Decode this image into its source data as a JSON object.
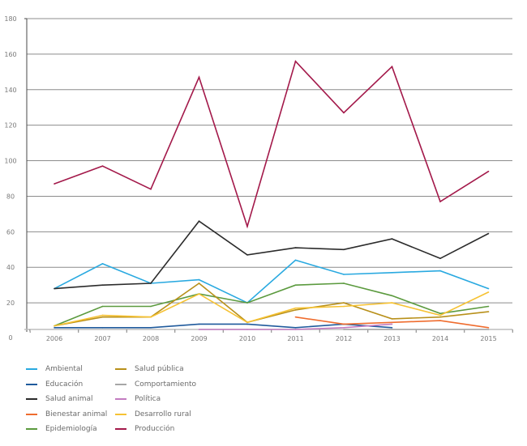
{
  "chart_data": {
    "type": "line",
    "title": "",
    "xlabel": "",
    "ylabel": "",
    "x": [
      "2006",
      "2007",
      "2008",
      "2009",
      "2010",
      "2011",
      "2012",
      "2013",
      "2014",
      "2015"
    ],
    "ylim": [
      0,
      180
    ],
    "yticks": [
      0,
      20,
      40,
      60,
      80,
      100,
      120,
      140,
      160,
      180
    ],
    "grid": true,
    "legend_position": "bottom",
    "series": [
      {
        "name": "Ambiental",
        "color": "#29a9e0",
        "values": [
          28,
          42,
          31,
          33,
          20,
          44,
          36,
          37,
          38,
          28
        ]
      },
      {
        "name": "Educación",
        "color": "#1f5a9c",
        "values": [
          6,
          6,
          6,
          8,
          8,
          6,
          8,
          6,
          null,
          null
        ]
      },
      {
        "name": "Salud animal",
        "color": "#2b2b2b",
        "values": [
          28,
          30,
          31,
          66,
          47,
          51,
          50,
          56,
          45,
          59
        ]
      },
      {
        "name": "Bienestar animal",
        "color": "#ef6c2e",
        "values": [
          null,
          null,
          null,
          null,
          null,
          12,
          8,
          9,
          10,
          6
        ]
      },
      {
        "name": "Epidemiología",
        "color": "#5b9a3e",
        "values": [
          7,
          18,
          18,
          25,
          20,
          30,
          31,
          24,
          14,
          18
        ]
      },
      {
        "name": "Salud pública",
        "color": "#b8901a",
        "values": [
          7,
          12,
          12,
          31,
          9,
          16,
          20,
          11,
          12,
          15
        ]
      },
      {
        "name": "Comportamiento",
        "color": "#a6a6a6",
        "values": [
          null,
          null,
          null,
          null,
          null,
          null,
          5,
          5,
          5,
          5
        ]
      },
      {
        "name": "Política",
        "color": "#c27bc0",
        "values": [
          null,
          null,
          null,
          5,
          5,
          5,
          6,
          8,
          null,
          null
        ]
      },
      {
        "name": "Desarrollo rural",
        "color": "#f6c233",
        "values": [
          7,
          13,
          12,
          25,
          9,
          17,
          18,
          20,
          13,
          26
        ]
      },
      {
        "name": "Producción",
        "color": "#a3194a",
        "values": [
          87,
          97,
          84,
          147,
          63,
          156,
          127,
          153,
          77,
          94
        ]
      }
    ]
  }
}
